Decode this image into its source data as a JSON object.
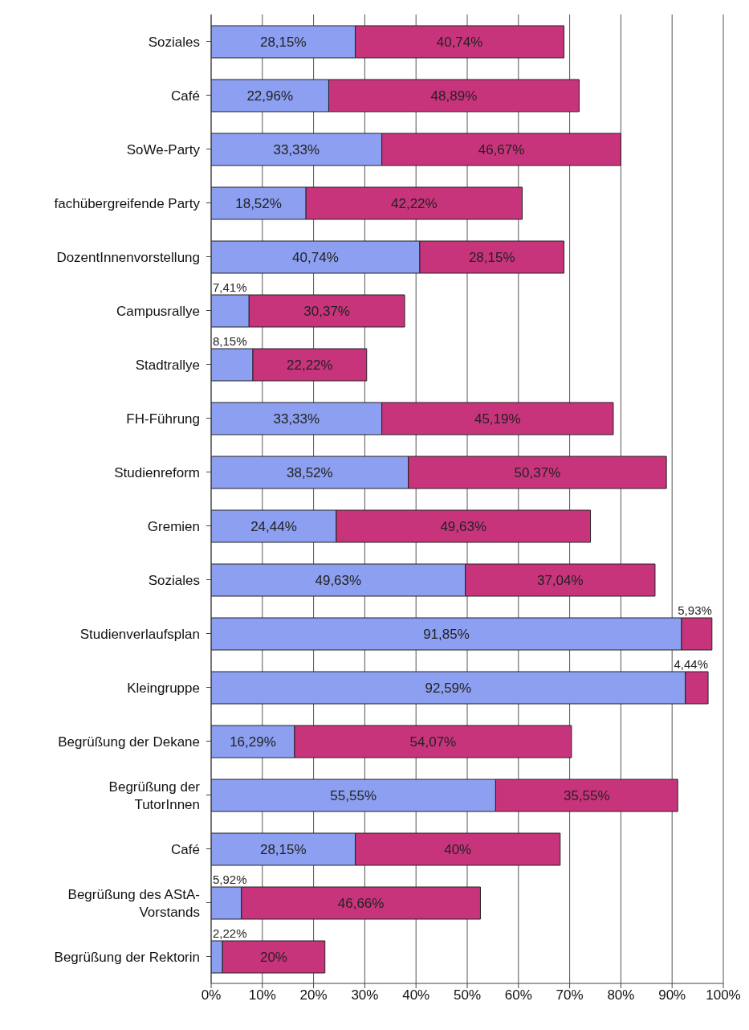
{
  "chart_data": {
    "type": "bar",
    "orientation": "horizontal",
    "stacked": true,
    "grid": "x",
    "legend": false,
    "categories": [
      "Soziales",
      "Café",
      "SoWe-Party",
      "fachübergreifende Party",
      "DozentInnenvorstellung",
      "Campusrallye",
      "Stadtrallye",
      "FH-Führung",
      "Studienreform",
      "Gremien",
      "Soziales",
      "Studienverlaufsplan",
      "Kleingruppe",
      "Begrüßung der Dekane",
      "Begrüßung der TutorInnen",
      "Café",
      "Begrüßung des AStA-Vorstands",
      "Begrüßung der Rektorin"
    ],
    "series": [
      {
        "color": "#8c9ff0",
        "values": [
          28.15,
          22.96,
          33.33,
          18.52,
          40.74,
          7.41,
          8.15,
          33.33,
          38.52,
          24.44,
          49.63,
          91.85,
          92.59,
          16.29,
          55.55,
          28.15,
          5.92,
          2.22
        ],
        "value_labels": [
          "28,15%",
          "22,96%",
          "33,33%",
          "18,52%",
          "40,74%",
          "7,41%",
          "8,15%",
          "33,33%",
          "38,52%",
          "24,44%",
          "49,63%",
          "91,85%",
          "92,59%",
          "16,29%",
          "55,55%",
          "28,15%",
          "5,92%",
          "2,22%"
        ]
      },
      {
        "color": "#c8347c",
        "values": [
          40.74,
          48.89,
          46.67,
          42.22,
          28.15,
          30.37,
          22.22,
          45.19,
          50.37,
          49.63,
          37.04,
          5.93,
          4.44,
          54.07,
          35.55,
          40,
          46.66,
          20
        ],
        "value_labels": [
          "40,74%",
          "48,89%",
          "46,67%",
          "42,22%",
          "28,15%",
          "30,37%",
          "22,22%",
          "45,19%",
          "50,37%",
          "49,63%",
          "37,04%",
          "5,93%",
          "4,44%",
          "54,07%",
          "35,55%",
          "40%",
          "46,66%",
          "20%"
        ]
      }
    ],
    "xlim": [
      0,
      100
    ],
    "xticks": [
      {
        "value": 0,
        "label": "0%"
      },
      {
        "value": 10,
        "label": "10%"
      },
      {
        "value": 20,
        "label": "20%"
      },
      {
        "value": 30,
        "label": "30%"
      },
      {
        "value": 40,
        "label": "40%"
      },
      {
        "value": 50,
        "label": "50%"
      },
      {
        "value": 60,
        "label": "60%"
      },
      {
        "value": 70,
        "label": "70%"
      },
      {
        "value": 80,
        "label": "80%"
      },
      {
        "value": 90,
        "label": "90%"
      },
      {
        "value": 100,
        "label": "100%"
      }
    ]
  }
}
